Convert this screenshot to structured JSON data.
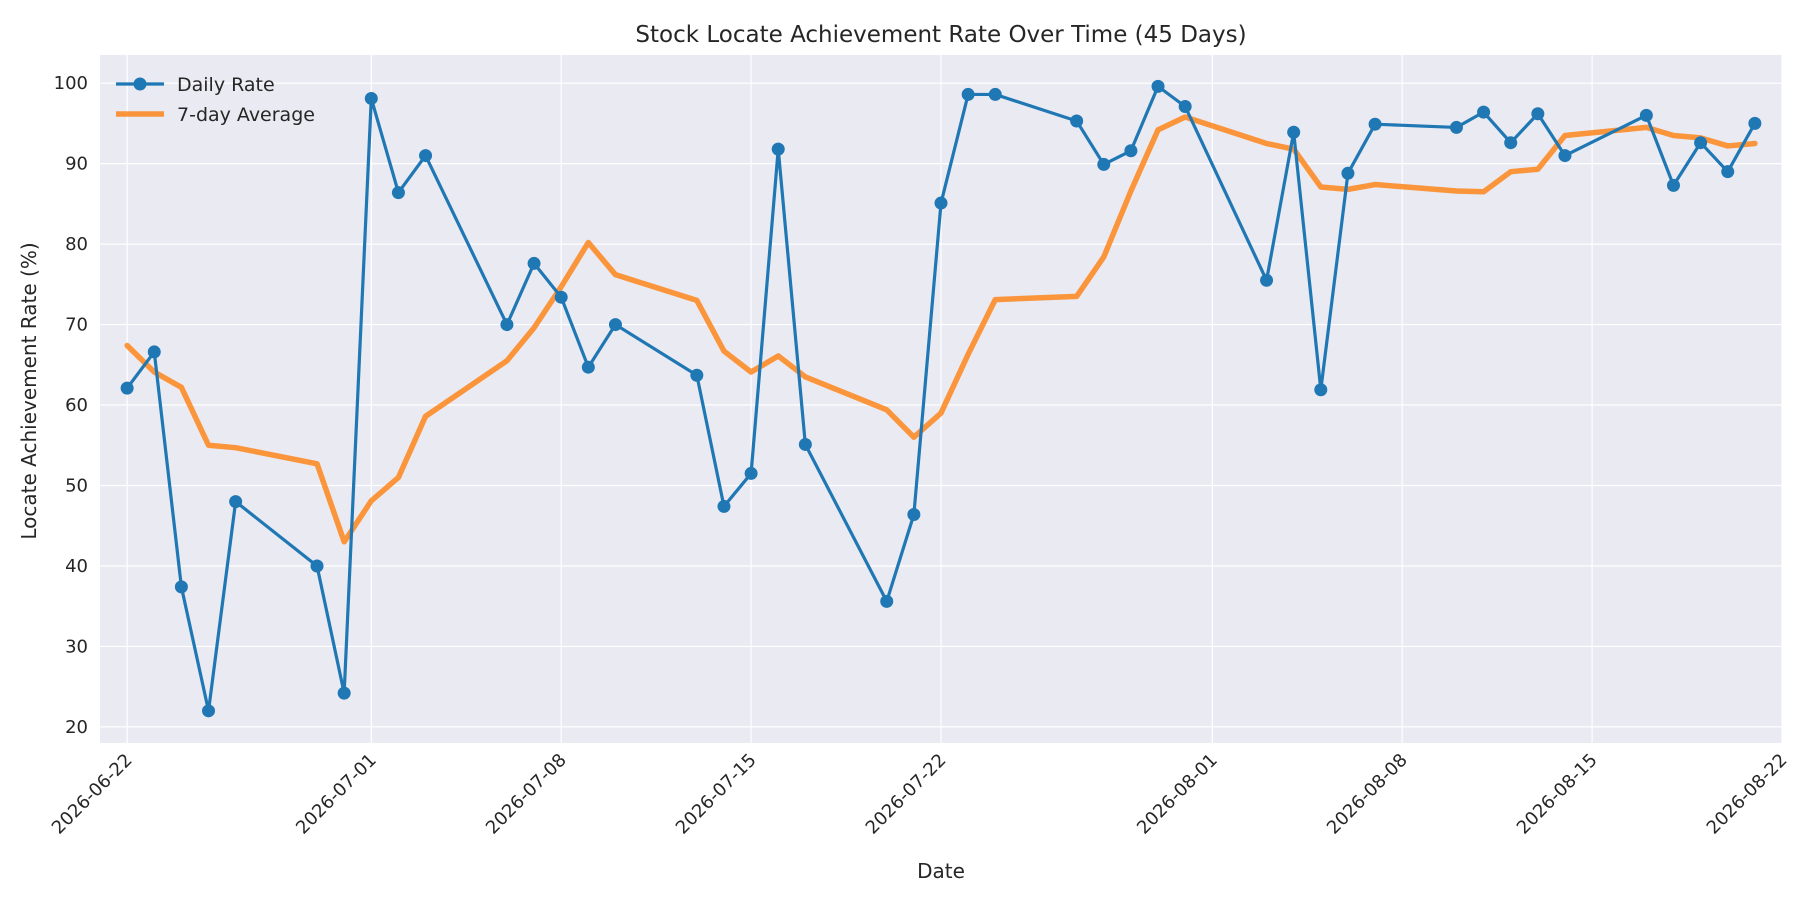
{
  "chart_data": {
    "type": "line",
    "title": "Stock Locate Achievement Rate Over Time (45 Days)",
    "xlabel": "Date",
    "ylabel": "Locate Achievement Rate (%)",
    "ylim": [
      18,
      103.5
    ],
    "xlim": [
      "2026-06-21",
      "2026-08-22"
    ],
    "grid": true,
    "legend_position": "top-left",
    "colors": {
      "background": "#eaeaf2",
      "grid": "#ffffff",
      "daily": "#1f77b4",
      "average": "#ff7f0e"
    },
    "x_ticks": [
      "2026-06-22",
      "2026-07-01",
      "2026-07-08",
      "2026-07-15",
      "2026-07-22",
      "2026-08-01",
      "2026-08-08",
      "2026-08-15",
      "2026-08-22"
    ],
    "y_ticks": [
      20,
      30,
      40,
      50,
      60,
      70,
      80,
      90,
      100
    ],
    "x": [
      "2026-06-22",
      "2026-06-23",
      "2026-06-24",
      "2026-06-25",
      "2026-06-26",
      "2026-06-29",
      "2026-06-30",
      "2026-07-01",
      "2026-07-02",
      "2026-07-03",
      "2026-07-06",
      "2026-07-07",
      "2026-07-08",
      "2026-07-09",
      "2026-07-10",
      "2026-07-13",
      "2026-07-14",
      "2026-07-15",
      "2026-07-16",
      "2026-07-17",
      "2026-07-20",
      "2026-07-21",
      "2026-07-22",
      "2026-07-23",
      "2026-07-24",
      "2026-07-27",
      "2026-07-28",
      "2026-07-29",
      "2026-07-30",
      "2026-07-31",
      "2026-08-03",
      "2026-08-04",
      "2026-08-05",
      "2026-08-06",
      "2026-08-07",
      "2026-08-10",
      "2026-08-11",
      "2026-08-12",
      "2026-08-13",
      "2026-08-14",
      "2026-08-17",
      "2026-08-18",
      "2026-08-19",
      "2026-08-20",
      "2026-08-21"
    ],
    "series": [
      {
        "name": "Daily Rate",
        "style": "line-with-markers",
        "values": [
          62.1,
          66.6,
          37.4,
          22.0,
          48.0,
          40.0,
          24.2,
          98.1,
          86.4,
          91.0,
          70.0,
          77.6,
          73.4,
          64.7,
          70.0,
          63.7,
          47.4,
          51.5,
          91.8,
          55.1,
          35.6,
          46.4,
          85.1,
          98.6,
          98.6,
          95.3,
          89.9,
          91.6,
          99.6,
          97.1,
          75.5,
          93.9,
          61.9,
          88.8,
          94.9,
          94.5,
          96.4,
          92.6,
          96.2,
          91.0,
          96.0,
          87.3,
          92.6,
          89.0,
          95.0
        ]
      },
      {
        "name": "7-day Average",
        "style": "line",
        "values": [
          67.4,
          64.1,
          62.2,
          55.0,
          54.7,
          52.7,
          43.0,
          48.1,
          51.0,
          58.6,
          65.5,
          69.6,
          74.7,
          80.2,
          76.2,
          73.0,
          66.7,
          64.1,
          66.1,
          63.5,
          59.4,
          56.0,
          59.0,
          66.3,
          73.1,
          73.5,
          78.4,
          86.6,
          94.2,
          95.8,
          92.5,
          91.8,
          87.1,
          86.8,
          87.4,
          86.6,
          86.5,
          89.0,
          89.3,
          93.5,
          94.5,
          93.5,
          93.2,
          92.2,
          92.5
        ]
      }
    ]
  }
}
